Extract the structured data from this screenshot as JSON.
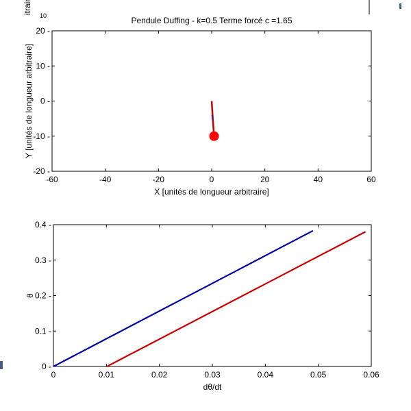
{
  "chart_data": [
    {
      "type": "line",
      "title": "Pendule Duffing - k=0.5 Terme forcé c =1.65",
      "xlabel": "X [unités de longueur arbitraire]",
      "ylabel": "Y [unités de longueur arbitraire]",
      "xlim": [
        -60,
        60
      ],
      "ylim": [
        -20,
        20
      ],
      "xticks": [
        -60,
        -40,
        -20,
        0,
        20,
        40,
        60
      ],
      "yticks": [
        -20,
        -10,
        0,
        10,
        20
      ],
      "xtick_labels": [
        "-60",
        "-40",
        "-20",
        "0",
        "20",
        "40",
        "60"
      ],
      "ytick_labels": [
        "-20",
        "-10",
        "0",
        "10",
        "20"
      ],
      "grid": false,
      "rod": {
        "color": "#cc0000",
        "x": [
          0,
          0.3,
          0.6,
          0.9
        ],
        "y": [
          0,
          -3.5,
          -7,
          -10
        ]
      },
      "rod_overlay": {
        "color": "#1f1fbf",
        "x": [
          0.1,
          0.3
        ],
        "y": [
          -4,
          -5.5
        ]
      },
      "bob": {
        "x": 0.9,
        "y": -10,
        "color": "#ff0000"
      }
    },
    {
      "type": "line",
      "title": "",
      "xlabel": "dθ/dt",
      "ylabel": "θ",
      "xlim": [
        0,
        0.06
      ],
      "ylim": [
        0,
        0.4
      ],
      "xticks": [
        0,
        0.01,
        0.02,
        0.03,
        0.04,
        0.05,
        0.06
      ],
      "yticks": [
        0,
        0.1,
        0.2,
        0.3,
        0.4
      ],
      "xtick_labels": [
        "0",
        "0.01",
        "0.02",
        "0.03",
        "0.04",
        "0.05",
        "0.06"
      ],
      "ytick_labels": [
        "0",
        "0.1",
        "0.2",
        "0.3",
        "0.4"
      ],
      "grid": false,
      "series": [
        {
          "color": "#0000aa",
          "x": [
            0,
            0.049
          ],
          "y": [
            0,
            0.383
          ]
        },
        {
          "color": "#cc0000",
          "x": [
            0.0101,
            0.0589
          ],
          "y": [
            0,
            0.38
          ]
        }
      ]
    }
  ],
  "fragments": {
    "top_left": "itrair",
    "top_left2": "10"
  }
}
